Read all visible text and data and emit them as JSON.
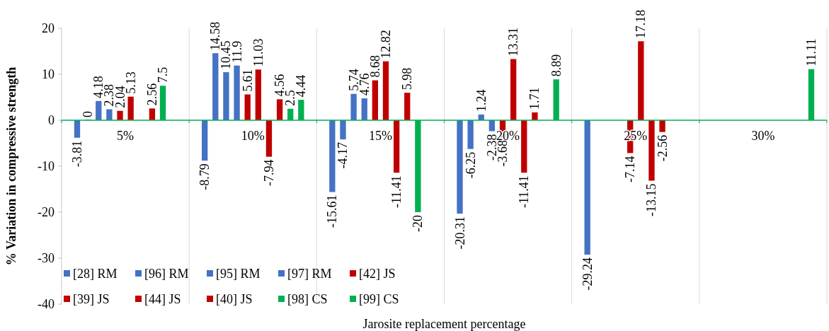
{
  "chart_data": {
    "type": "bar",
    "xlabel": "Jarosite replacement percentage",
    "ylabel": "% Variation in compressive strength",
    "categories": [
      "5%",
      "10%",
      "15%",
      "20%",
      "25%",
      "30%"
    ],
    "series": [
      {
        "name": "[28] RM",
        "color": "#4472c4",
        "values": [
          -3.81,
          -8.79,
          -15.61,
          -20.31,
          -29.24,
          null
        ]
      },
      {
        "name": "[96] RM",
        "color": "#4472c4",
        "values": [
          0,
          14.58,
          -4.17,
          -6.25,
          null,
          null
        ]
      },
      {
        "name": "[95] RM",
        "color": "#4472c4",
        "values": [
          4.18,
          10.45,
          5.74,
          1.24,
          null,
          null
        ]
      },
      {
        "name": "[97] RM",
        "color": "#4472c4",
        "values": [
          2.38,
          11.9,
          4.76,
          -2.38,
          null,
          null
        ]
      },
      {
        "name": "[42] JS",
        "color": "#c00000",
        "values": [
          2.04,
          5.61,
          8.68,
          -3.68,
          -7.14,
          null
        ]
      },
      {
        "name": "[39] JS",
        "color": "#c00000",
        "values": [
          5.13,
          11.03,
          12.82,
          13.31,
          17.18,
          null
        ]
      },
      {
        "name": "[44] JS",
        "color": "#c00000",
        "values": [
          null,
          -7.94,
          -11.41,
          -11.41,
          -13.15,
          null
        ]
      },
      {
        "name": "[40] JS",
        "color": "#c00000",
        "values": [
          2.56,
          4.56,
          5.98,
          1.71,
          -2.56,
          null
        ]
      },
      {
        "name": "[98] CS",
        "color": "#00b050",
        "values": [
          7.5,
          2.5,
          -20,
          null,
          null,
          null
        ]
      },
      {
        "name": "[99] CS",
        "color": "#00b050",
        "values": [
          null,
          4.44,
          null,
          8.89,
          null,
          11.11
        ]
      }
    ],
    "ylim": [
      -40,
      20
    ],
    "yticks": [
      -40,
      -30,
      -20,
      -10,
      0,
      10,
      20
    ],
    "grid": "x",
    "legend": "bottom left",
    "data_labels": true
  }
}
